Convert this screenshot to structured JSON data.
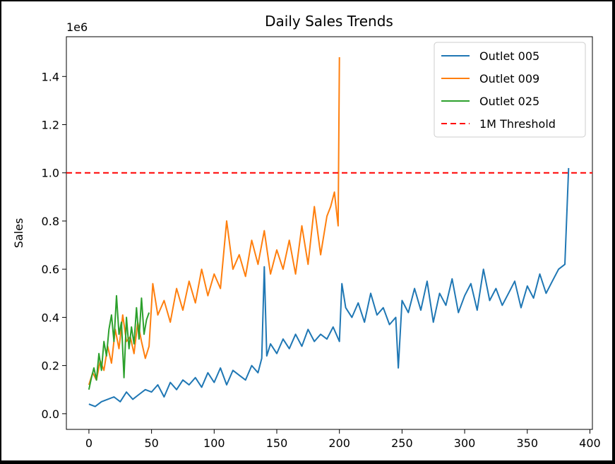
{
  "chart_data": {
    "type": "line",
    "title": "Daily Sales Trends",
    "xlabel": "",
    "ylabel": "Sales",
    "y_offset_label": "1e6",
    "xlim": [
      -18,
      402
    ],
    "ylim": [
      -0.065,
      1.565
    ],
    "x_ticks": [
      0,
      50,
      100,
      150,
      200,
      250,
      300,
      350,
      400
    ],
    "y_ticks": [
      0.0,
      0.2,
      0.4,
      0.6,
      0.8,
      1.0,
      1.2,
      1.4
    ],
    "y_tick_labels": [
      "0.0",
      "0.2",
      "0.4",
      "0.6",
      "0.8",
      "1.0",
      "1.2",
      "1.4"
    ],
    "grid": false,
    "legend_placement": "top-right",
    "threshold": {
      "name": "1M Threshold",
      "y": 1.0,
      "color": "#ff0000",
      "style": "dashed"
    },
    "series": [
      {
        "name": "Outlet 005",
        "color": "#1f77b4",
        "x": [
          0,
          5,
          10,
          15,
          20,
          25,
          30,
          35,
          40,
          45,
          50,
          55,
          60,
          65,
          70,
          75,
          80,
          85,
          90,
          95,
          100,
          105,
          110,
          115,
          120,
          125,
          130,
          135,
          138,
          140,
          142,
          145,
          150,
          155,
          160,
          165,
          170,
          175,
          180,
          185,
          190,
          195,
          200,
          202,
          205,
          210,
          215,
          220,
          225,
          230,
          235,
          240,
          245,
          247,
          250,
          255,
          260,
          265,
          270,
          275,
          280,
          285,
          290,
          295,
          300,
          305,
          310,
          315,
          320,
          325,
          330,
          335,
          340,
          345,
          350,
          355,
          360,
          365,
          370,
          375,
          380,
          383
        ],
        "y": [
          0.04,
          0.03,
          0.05,
          0.06,
          0.07,
          0.05,
          0.09,
          0.06,
          0.08,
          0.1,
          0.09,
          0.12,
          0.07,
          0.13,
          0.1,
          0.14,
          0.12,
          0.15,
          0.11,
          0.17,
          0.13,
          0.19,
          0.12,
          0.18,
          0.16,
          0.14,
          0.2,
          0.17,
          0.23,
          0.61,
          0.24,
          0.29,
          0.25,
          0.31,
          0.27,
          0.33,
          0.28,
          0.35,
          0.3,
          0.33,
          0.31,
          0.36,
          0.3,
          0.54,
          0.44,
          0.4,
          0.46,
          0.38,
          0.5,
          0.41,
          0.44,
          0.37,
          0.4,
          0.19,
          0.47,
          0.42,
          0.52,
          0.43,
          0.55,
          0.38,
          0.5,
          0.45,
          0.56,
          0.42,
          0.49,
          0.54,
          0.43,
          0.6,
          0.47,
          0.52,
          0.45,
          0.5,
          0.55,
          0.44,
          0.53,
          0.48,
          0.58,
          0.5,
          0.55,
          0.6,
          0.62,
          1.02
        ]
      },
      {
        "name": "Outlet 009",
        "color": "#ff7f0e",
        "x": [
          0,
          3,
          6,
          9,
          12,
          15,
          18,
          21,
          24,
          27,
          30,
          33,
          36,
          39,
          42,
          45,
          48,
          51,
          55,
          60,
          65,
          70,
          75,
          80,
          85,
          90,
          95,
          100,
          105,
          110,
          115,
          120,
          125,
          130,
          135,
          140,
          145,
          150,
          155,
          160,
          165,
          170,
          175,
          180,
          185,
          190,
          193,
          196,
          199,
          200
        ],
        "y": [
          0.12,
          0.17,
          0.14,
          0.22,
          0.18,
          0.28,
          0.21,
          0.35,
          0.27,
          0.41,
          0.3,
          0.32,
          0.25,
          0.38,
          0.3,
          0.23,
          0.28,
          0.54,
          0.41,
          0.47,
          0.38,
          0.52,
          0.43,
          0.55,
          0.46,
          0.6,
          0.49,
          0.58,
          0.52,
          0.8,
          0.6,
          0.66,
          0.57,
          0.72,
          0.62,
          0.76,
          0.58,
          0.68,
          0.6,
          0.72,
          0.58,
          0.78,
          0.62,
          0.86,
          0.66,
          0.82,
          0.86,
          0.92,
          0.78,
          1.48
        ]
      },
      {
        "name": "Outlet 025",
        "color": "#2ca02c",
        "x": [
          0,
          2,
          4,
          6,
          8,
          10,
          12,
          14,
          16,
          18,
          20,
          22,
          24,
          26,
          28,
          30,
          32,
          34,
          36,
          38,
          40,
          42,
          44,
          46,
          48
        ],
        "y": [
          0.1,
          0.15,
          0.19,
          0.14,
          0.25,
          0.18,
          0.3,
          0.24,
          0.35,
          0.41,
          0.3,
          0.49,
          0.33,
          0.38,
          0.15,
          0.4,
          0.27,
          0.36,
          0.29,
          0.44,
          0.31,
          0.48,
          0.33,
          0.39,
          0.42
        ]
      }
    ]
  }
}
